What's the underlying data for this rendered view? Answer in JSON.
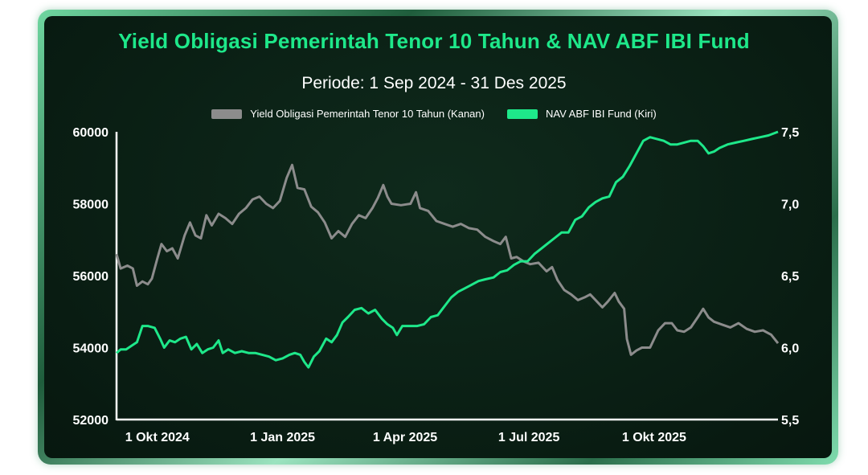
{
  "colors": {
    "title": "#1ee88a",
    "nav_series": "#1ee88a",
    "yield_series": "#8c8c8c",
    "axis": "#ffffff",
    "background": "#0a1f14"
  },
  "chart_data": {
    "type": "line",
    "title": "Yield Obligasi Pemerintah Tenor 10 Tahun & NAV ABF IBI Fund",
    "subtitle": "Periode: 1 Sep 2024 - 31 Des 2025",
    "x_range": [
      "2024-09-01",
      "2025-12-31"
    ],
    "x_ticks": [
      {
        "date": "2024-10-01",
        "label": "1 Okt 2024"
      },
      {
        "date": "2025-01-01",
        "label": "1 Jan 2025"
      },
      {
        "date": "2025-04-01",
        "label": "1 Apr 2025"
      },
      {
        "date": "2025-07-01",
        "label": "1 Jul 2025"
      },
      {
        "date": "2025-10-01",
        "label": "1 Okt 2025"
      }
    ],
    "y_left": {
      "range": [
        52000,
        60000
      ],
      "ticks": [
        "52000",
        "54000",
        "56000",
        "58000",
        "60000"
      ]
    },
    "y_right": {
      "range": [
        5.5,
        7.5
      ],
      "ticks": [
        "5,5",
        "6,0",
        "6,5",
        "7,0",
        "7,5"
      ]
    },
    "grid": false,
    "legend_position": "top-center",
    "series": [
      {
        "name": "Yield Obligasi Pemerintah Tenor 10 Tahun (Kanan)",
        "axis": "right",
        "points": [
          [
            "2024-09-01",
            6.65
          ],
          [
            "2024-09-04",
            6.55
          ],
          [
            "2024-09-09",
            6.57
          ],
          [
            "2024-09-13",
            6.55
          ],
          [
            "2024-09-16",
            6.43
          ],
          [
            "2024-09-20",
            6.46
          ],
          [
            "2024-09-24",
            6.44
          ],
          [
            "2024-09-27",
            6.48
          ],
          [
            "2024-10-01",
            6.62
          ],
          [
            "2024-10-04",
            6.72
          ],
          [
            "2024-10-08",
            6.67
          ],
          [
            "2024-10-12",
            6.69
          ],
          [
            "2024-10-16",
            6.62
          ],
          [
            "2024-10-21",
            6.78
          ],
          [
            "2024-10-25",
            6.87
          ],
          [
            "2024-10-29",
            6.78
          ],
          [
            "2024-11-02",
            6.76
          ],
          [
            "2024-11-06",
            6.92
          ],
          [
            "2024-11-10",
            6.85
          ],
          [
            "2024-11-15",
            6.93
          ],
          [
            "2024-11-20",
            6.9
          ],
          [
            "2024-11-25",
            6.86
          ],
          [
            "2024-11-30",
            6.93
          ],
          [
            "2024-12-05",
            6.97
          ],
          [
            "2024-12-10",
            7.03
          ],
          [
            "2024-12-15",
            7.05
          ],
          [
            "2024-12-20",
            7.0
          ],
          [
            "2024-12-25",
            6.97
          ],
          [
            "2024-12-30",
            7.02
          ],
          [
            "2025-01-04",
            7.18
          ],
          [
            "2025-01-08",
            7.27
          ],
          [
            "2025-01-12",
            7.11
          ],
          [
            "2025-01-17",
            7.1
          ],
          [
            "2025-01-22",
            6.98
          ],
          [
            "2025-01-27",
            6.94
          ],
          [
            "2025-02-01",
            6.87
          ],
          [
            "2025-02-06",
            6.76
          ],
          [
            "2025-02-11",
            6.81
          ],
          [
            "2025-02-16",
            6.77
          ],
          [
            "2025-02-21",
            6.86
          ],
          [
            "2025-02-26",
            6.92
          ],
          [
            "2025-03-03",
            6.9
          ],
          [
            "2025-03-08",
            6.97
          ],
          [
            "2025-03-12",
            7.04
          ],
          [
            "2025-03-16",
            7.13
          ],
          [
            "2025-03-19",
            7.05
          ],
          [
            "2025-03-22",
            7.0
          ],
          [
            "2025-03-29",
            6.99
          ],
          [
            "2025-04-05",
            7.0
          ],
          [
            "2025-04-09",
            7.08
          ],
          [
            "2025-04-12",
            6.97
          ],
          [
            "2025-04-18",
            6.95
          ],
          [
            "2025-04-24",
            6.88
          ],
          [
            "2025-04-30",
            6.86
          ],
          [
            "2025-05-06",
            6.84
          ],
          [
            "2025-05-12",
            6.86
          ],
          [
            "2025-05-18",
            6.83
          ],
          [
            "2025-05-24",
            6.82
          ],
          [
            "2025-05-30",
            6.77
          ],
          [
            "2025-06-05",
            6.74
          ],
          [
            "2025-06-10",
            6.72
          ],
          [
            "2025-06-14",
            6.77
          ],
          [
            "2025-06-18",
            6.62
          ],
          [
            "2025-06-22",
            6.63
          ],
          [
            "2025-06-27",
            6.6
          ],
          [
            "2025-07-02",
            6.58
          ],
          [
            "2025-07-08",
            6.59
          ],
          [
            "2025-07-14",
            6.53
          ],
          [
            "2025-07-18",
            6.56
          ],
          [
            "2025-07-22",
            6.47
          ],
          [
            "2025-07-27",
            6.4
          ],
          [
            "2025-08-01",
            6.37
          ],
          [
            "2025-08-06",
            6.33
          ],
          [
            "2025-08-11",
            6.35
          ],
          [
            "2025-08-15",
            6.37
          ],
          [
            "2025-08-19",
            6.33
          ],
          [
            "2025-08-24",
            6.28
          ],
          [
            "2025-08-28",
            6.32
          ],
          [
            "2025-09-02",
            6.38
          ],
          [
            "2025-09-05",
            6.32
          ],
          [
            "2025-09-09",
            6.27
          ],
          [
            "2025-09-11",
            6.06
          ],
          [
            "2025-09-14",
            5.95
          ],
          [
            "2025-09-18",
            5.98
          ],
          [
            "2025-09-22",
            6.0
          ],
          [
            "2025-09-28",
            6.0
          ],
          [
            "2025-10-04",
            6.12
          ],
          [
            "2025-10-09",
            6.17
          ],
          [
            "2025-10-14",
            6.17
          ],
          [
            "2025-10-18",
            6.12
          ],
          [
            "2025-10-23",
            6.11
          ],
          [
            "2025-10-28",
            6.14
          ],
          [
            "2025-11-02",
            6.21
          ],
          [
            "2025-11-06",
            6.27
          ],
          [
            "2025-11-10",
            6.21
          ],
          [
            "2025-11-14",
            6.18
          ],
          [
            "2025-11-20",
            6.16
          ],
          [
            "2025-11-26",
            6.14
          ],
          [
            "2025-12-02",
            6.17
          ],
          [
            "2025-12-08",
            6.13
          ],
          [
            "2025-12-14",
            6.11
          ],
          [
            "2025-12-20",
            6.12
          ],
          [
            "2025-12-26",
            6.09
          ],
          [
            "2025-12-31",
            6.03
          ]
        ]
      },
      {
        "name": "NAV ABF IBI Fund (Kiri)",
        "axis": "left",
        "points": [
          [
            "2024-09-01",
            53850
          ],
          [
            "2024-09-04",
            53950
          ],
          [
            "2024-09-08",
            53950
          ],
          [
            "2024-09-12",
            54050
          ],
          [
            "2024-09-16",
            54150
          ],
          [
            "2024-09-20",
            54600
          ],
          [
            "2024-09-24",
            54600
          ],
          [
            "2024-09-29",
            54550
          ],
          [
            "2024-10-03",
            54250
          ],
          [
            "2024-10-06",
            54000
          ],
          [
            "2024-10-10",
            54200
          ],
          [
            "2024-10-14",
            54150
          ],
          [
            "2024-10-18",
            54250
          ],
          [
            "2024-10-22",
            54300
          ],
          [
            "2024-10-26",
            53950
          ],
          [
            "2024-10-30",
            54100
          ],
          [
            "2024-11-03",
            53850
          ],
          [
            "2024-11-07",
            53950
          ],
          [
            "2024-11-11",
            54000
          ],
          [
            "2024-11-15",
            54200
          ],
          [
            "2024-11-18",
            53850
          ],
          [
            "2024-11-22",
            53950
          ],
          [
            "2024-11-27",
            53850
          ],
          [
            "2024-12-02",
            53900
          ],
          [
            "2024-12-07",
            53850
          ],
          [
            "2024-12-12",
            53850
          ],
          [
            "2024-12-17",
            53800
          ],
          [
            "2024-12-22",
            53750
          ],
          [
            "2024-12-27",
            53650
          ],
          [
            "2025-01-01",
            53700
          ],
          [
            "2025-01-06",
            53800
          ],
          [
            "2025-01-10",
            53850
          ],
          [
            "2025-01-14",
            53800
          ],
          [
            "2025-01-17",
            53600
          ],
          [
            "2025-01-20",
            53450
          ],
          [
            "2025-01-24",
            53750
          ],
          [
            "2025-01-28",
            53900
          ],
          [
            "2025-02-02",
            54250
          ],
          [
            "2025-02-06",
            54150
          ],
          [
            "2025-02-10",
            54350
          ],
          [
            "2025-02-14",
            54700
          ],
          [
            "2025-02-18",
            54850
          ],
          [
            "2025-02-23",
            55050
          ],
          [
            "2025-02-28",
            55100
          ],
          [
            "2025-03-05",
            54950
          ],
          [
            "2025-03-10",
            55050
          ],
          [
            "2025-03-15",
            54800
          ],
          [
            "2025-03-19",
            54650
          ],
          [
            "2025-03-23",
            54550
          ],
          [
            "2025-03-26",
            54350
          ],
          [
            "2025-03-30",
            54600
          ],
          [
            "2025-04-05",
            54600
          ],
          [
            "2025-04-10",
            54600
          ],
          [
            "2025-04-15",
            54650
          ],
          [
            "2025-04-20",
            54850
          ],
          [
            "2025-04-25",
            54900
          ],
          [
            "2025-04-30",
            55150
          ],
          [
            "2025-05-05",
            55400
          ],
          [
            "2025-05-10",
            55550
          ],
          [
            "2025-05-15",
            55650
          ],
          [
            "2025-05-20",
            55750
          ],
          [
            "2025-05-25",
            55850
          ],
          [
            "2025-05-30",
            55900
          ],
          [
            "2025-06-05",
            55950
          ],
          [
            "2025-06-10",
            56100
          ],
          [
            "2025-06-15",
            56150
          ],
          [
            "2025-06-20",
            56300
          ],
          [
            "2025-06-25",
            56400
          ],
          [
            "2025-06-30",
            56400
          ],
          [
            "2025-07-05",
            56600
          ],
          [
            "2025-07-10",
            56750
          ],
          [
            "2025-07-15",
            56900
          ],
          [
            "2025-07-20",
            57050
          ],
          [
            "2025-07-25",
            57200
          ],
          [
            "2025-07-30",
            57200
          ],
          [
            "2025-08-04",
            57550
          ],
          [
            "2025-08-09",
            57650
          ],
          [
            "2025-08-14",
            57900
          ],
          [
            "2025-08-19",
            58050
          ],
          [
            "2025-08-24",
            58150
          ],
          [
            "2025-08-29",
            58200
          ],
          [
            "2025-09-03",
            58600
          ],
          [
            "2025-09-08",
            58750
          ],
          [
            "2025-09-13",
            59050
          ],
          [
            "2025-09-18",
            59400
          ],
          [
            "2025-09-23",
            59750
          ],
          [
            "2025-09-28",
            59850
          ],
          [
            "2025-10-03",
            59800
          ],
          [
            "2025-10-08",
            59750
          ],
          [
            "2025-10-13",
            59650
          ],
          [
            "2025-10-18",
            59650
          ],
          [
            "2025-10-23",
            59700
          ],
          [
            "2025-10-28",
            59750
          ],
          [
            "2025-11-02",
            59750
          ],
          [
            "2025-11-06",
            59600
          ],
          [
            "2025-11-10",
            59400
          ],
          [
            "2025-11-14",
            59450
          ],
          [
            "2025-11-18",
            59550
          ],
          [
            "2025-11-24",
            59650
          ],
          [
            "2025-11-30",
            59700
          ],
          [
            "2025-12-06",
            59750
          ],
          [
            "2025-12-12",
            59800
          ],
          [
            "2025-12-18",
            59850
          ],
          [
            "2025-12-24",
            59900
          ],
          [
            "2025-12-31",
            60000
          ]
        ]
      }
    ]
  }
}
